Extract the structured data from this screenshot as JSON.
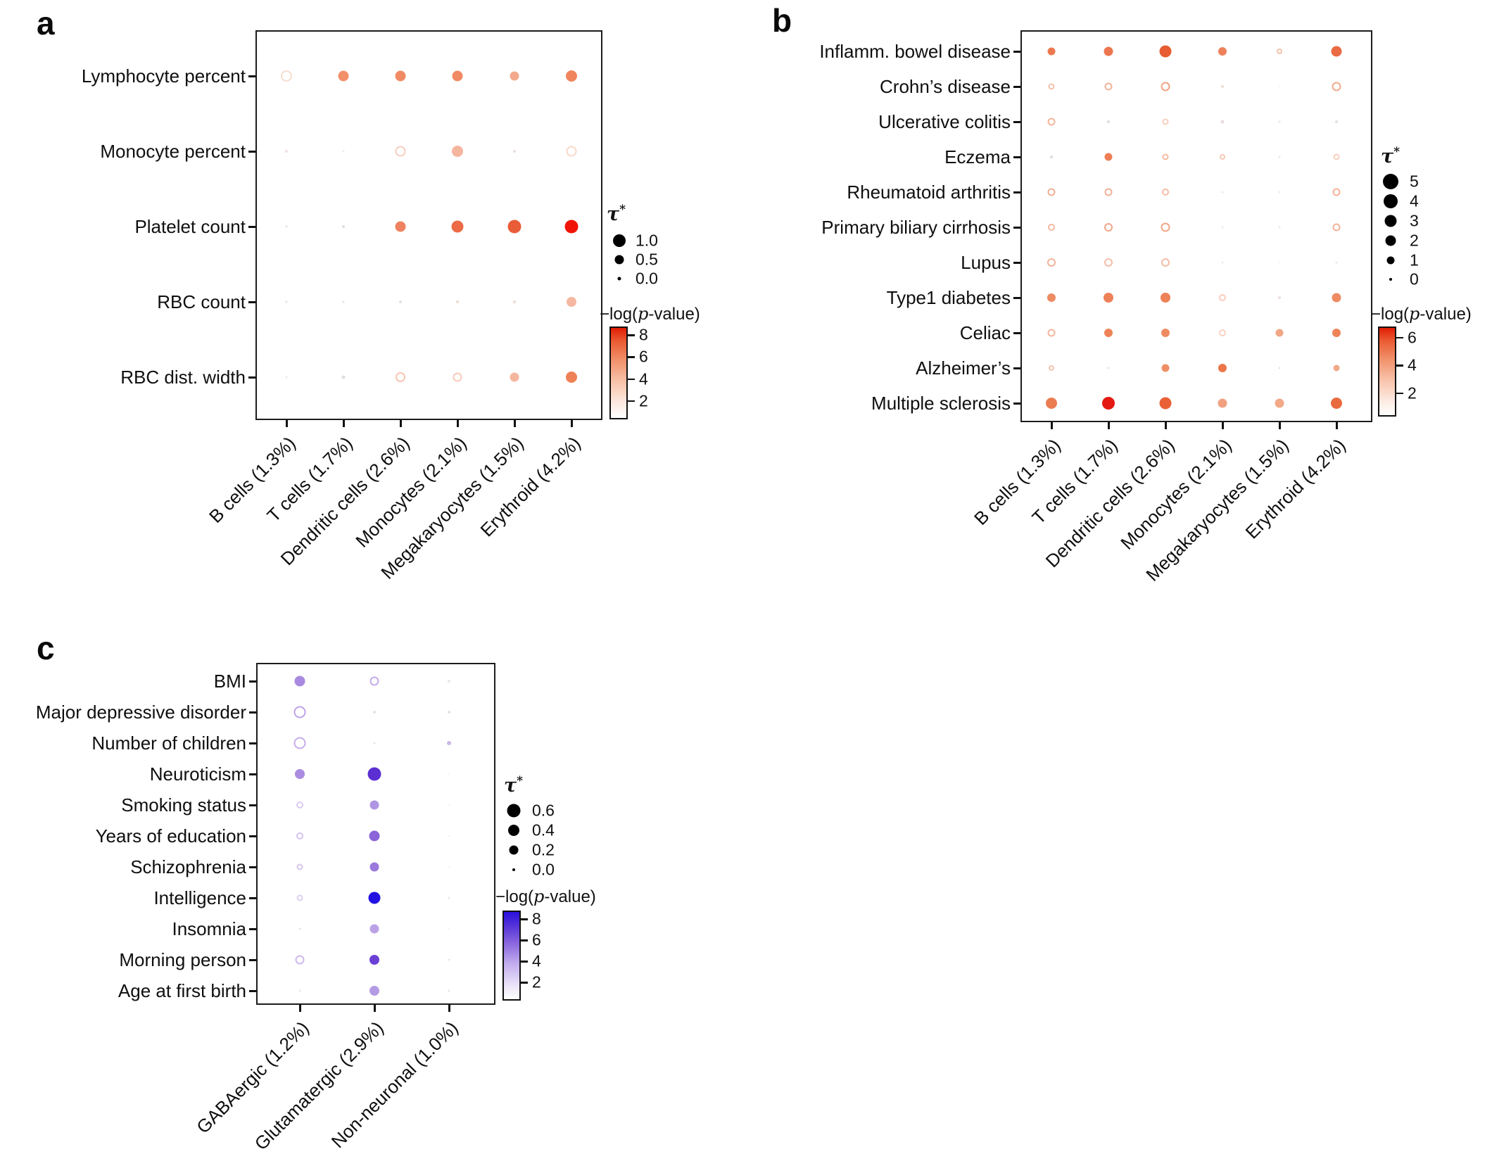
{
  "figure": {
    "background": "#ffffff"
  },
  "chart_data": [
    {
      "type": "scatter",
      "panel_label": "a",
      "y_categories": [
        "Lymphocyte percent",
        "Monocyte percent",
        "Platelet count",
        "RBC count",
        "RBC dist. width"
      ],
      "x_categories": [
        "B cells (1.3%)",
        "T cells (1.7%)",
        "Dendritic cells (2.6%)",
        "Monocytes (2.1%)",
        "Megakaryocytes (1.5%)",
        "Erythroid (4.2%)"
      ],
      "dot_format": "[diameter_px, color_hex, open_ring]",
      "dots": [
        [
          [
            16,
            "#f6ddd0",
            1
          ],
          [
            15,
            "#f2906a",
            0
          ],
          [
            15,
            "#f08a64",
            0
          ],
          [
            15,
            "#f08a64",
            0
          ],
          [
            13,
            "#f4a98c",
            0
          ],
          [
            16,
            "#f0845c",
            0
          ]
        ],
        [
          [
            4,
            "#eee2de",
            0
          ],
          [
            3,
            "#f2eae6",
            0
          ],
          [
            15,
            "#f7cdbd",
            1
          ],
          [
            16,
            "#f5b59e",
            0
          ],
          [
            4,
            "#eadfdb",
            0
          ],
          [
            15,
            "#f8d8c9",
            1
          ]
        ],
        [
          [
            3,
            "#e3dfdd",
            0
          ],
          [
            4,
            "#dddddf",
            0
          ],
          [
            15,
            "#ef8260",
            0
          ],
          [
            17,
            "#ec6a44",
            0
          ],
          [
            19,
            "#e95c38",
            0
          ],
          [
            19,
            "#f01408",
            0
          ]
        ],
        [
          [
            3,
            "#e8e2e0",
            0
          ],
          [
            3,
            "#e8e2e0",
            0
          ],
          [
            4,
            "#e4e0e0",
            0
          ],
          [
            4,
            "#eedcd4",
            0
          ],
          [
            4,
            "#eedcd4",
            0
          ],
          [
            14,
            "#f5b79f",
            0
          ]
        ],
        [
          [
            3,
            "#efe7e3",
            0
          ],
          [
            5,
            "#e2dcde",
            0
          ],
          [
            14,
            "#f6c5b1",
            1
          ],
          [
            13,
            "#f7cab8",
            1
          ],
          [
            13,
            "#f5b69e",
            0
          ],
          [
            16,
            "#ef8156",
            0
          ]
        ]
      ],
      "legend": {
        "size_title": "τ*",
        "sizes": [
          {
            "label": "1.0",
            "d": 18
          },
          {
            "label": "0.5",
            "d": 13
          },
          {
            "label": "0.0",
            "d": 5
          }
        ],
        "pvalue_title": "−log(p-value)",
        "colorbar_ticks": [
          "8",
          "6",
          "4",
          "2"
        ],
        "colorbar_high": "#e01d05",
        "colorbar_low": "#ffffff"
      }
    },
    {
      "type": "scatter",
      "panel_label": "b",
      "y_categories": [
        "Inflamm. bowel disease",
        "Crohn’s disease",
        "Ulcerative colitis",
        "Eczema",
        "Rheumatoid arthritis",
        "Primary biliary cirrhosis",
        "Lupus",
        "Type1 diabetes",
        "Celiac",
        "Alzheimer’s",
        "Multiple sclerosis"
      ],
      "x_categories": [
        "B cells (1.3%)",
        "T cells (1.7%)",
        "Dendritic cells (2.6%)",
        "Monocytes (2.1%)",
        "Megakaryocytes (1.5%)",
        "Erythroid (4.2%)"
      ],
      "dot_format": "[diameter_px, color_hex, open_ring]",
      "dots": [
        [
          [
            11,
            "#ec7850",
            0
          ],
          [
            13,
            "#ec764e",
            0
          ],
          [
            17,
            "#e75c32",
            0
          ],
          [
            12,
            "#ee815a",
            0
          ],
          [
            8,
            "#f6c2ac",
            1
          ],
          [
            15,
            "#ea6a42",
            0
          ]
        ],
        [
          [
            9,
            "#f5c2ac",
            1
          ],
          [
            11,
            "#f3b298",
            1
          ],
          [
            13,
            "#f1a384",
            1
          ],
          [
            4,
            "#efddd5",
            0
          ],
          [
            2,
            "#f2eae6",
            0
          ],
          [
            13,
            "#f1a98d",
            1
          ]
        ],
        [
          [
            11,
            "#f3b59b",
            1
          ],
          [
            4,
            "#dedadc",
            0
          ],
          [
            9,
            "#f7cfbe",
            1
          ],
          [
            5,
            "#e7dedb",
            0
          ],
          [
            3,
            "#ebe5e3",
            0
          ],
          [
            4,
            "#e7dedb",
            0
          ]
        ],
        [
          [
            4,
            "#dedadc",
            0
          ],
          [
            11,
            "#ee7e54",
            0
          ],
          [
            9,
            "#f4baa0",
            1
          ],
          [
            8,
            "#f7c8b4",
            1
          ],
          [
            3,
            "#ebe5e3",
            0
          ],
          [
            9,
            "#f8cfbd",
            1
          ]
        ],
        [
          [
            11,
            "#f3b095",
            1
          ],
          [
            11,
            "#f3b095",
            1
          ],
          [
            10,
            "#f4bda5",
            1
          ],
          [
            3,
            "#f0e9e7",
            0
          ],
          [
            3,
            "#f0e9e7",
            0
          ],
          [
            11,
            "#f3b298",
            1
          ]
        ],
        [
          [
            10,
            "#f4b89f",
            1
          ],
          [
            12,
            "#f2a788",
            1
          ],
          [
            13,
            "#f2a788",
            1
          ],
          [
            3,
            "#f0e9e7",
            0
          ],
          [
            3,
            "#f0e9e7",
            0
          ],
          [
            11,
            "#f3b298",
            1
          ]
        ],
        [
          [
            12,
            "#f3b49a",
            1
          ],
          [
            12,
            "#f4bda7",
            1
          ],
          [
            12,
            "#f4bda7",
            1
          ],
          [
            3,
            "#f0e9e7",
            0
          ],
          [
            2,
            "#f3edeb",
            0
          ],
          [
            3,
            "#f0e9e7",
            0
          ]
        ],
        [
          [
            12,
            "#ee8b62",
            0
          ],
          [
            14,
            "#ed8157",
            0
          ],
          [
            14,
            "#ed8157",
            0
          ],
          [
            10,
            "#f8ccba",
            1
          ],
          [
            4,
            "#ebdfd9",
            0
          ],
          [
            13,
            "#ee8b62",
            0
          ]
        ],
        [
          [
            11,
            "#f3b69c",
            1
          ],
          [
            12,
            "#ee8357",
            0
          ],
          [
            12,
            "#ee8b60",
            0
          ],
          [
            10,
            "#f9d1c1",
            1
          ],
          [
            11,
            "#f2a685",
            0
          ],
          [
            12,
            "#ee8357",
            0
          ]
        ],
        [
          [
            8,
            "#f6c4af",
            1
          ],
          [
            3,
            "#ece3df",
            0
          ],
          [
            11,
            "#ee8f66",
            0
          ],
          [
            12,
            "#ec764a",
            0
          ],
          [
            3,
            "#ece3df",
            0
          ],
          [
            9,
            "#f2a988",
            0
          ]
        ],
        [
          [
            16,
            "#ec7c52",
            0
          ],
          [
            18,
            "#e41a12",
            0
          ],
          [
            17,
            "#ea6036",
            0
          ],
          [
            13,
            "#f2a180",
            0
          ],
          [
            13,
            "#f2a988",
            0
          ],
          [
            16,
            "#ea6a40",
            0
          ]
        ]
      ],
      "legend": {
        "size_title": "τ*",
        "sizes": [
          {
            "label": "5",
            "d": 22
          },
          {
            "label": "4",
            "d": 20
          },
          {
            "label": "3",
            "d": 17
          },
          {
            "label": "2",
            "d": 15
          },
          {
            "label": "1",
            "d": 11
          },
          {
            "label": "0",
            "d": 4
          }
        ],
        "pvalue_title": "−log(p-value)",
        "colorbar_ticks": [
          "6",
          "4",
          "2"
        ],
        "colorbar_high": "#e01d05",
        "colorbar_low": "#ffffff"
      }
    },
    {
      "type": "scatter",
      "panel_label": "c",
      "y_categories": [
        "BMI",
        "Major depressive disorder",
        "Number of children",
        "Neuroticism",
        "Smoking status",
        "Years of education",
        "Schizophrenia",
        "Intelligence",
        "Insomnia",
        "Morning person",
        "Age at first birth"
      ],
      "x_categories": [
        "GABAergic (1.2%)",
        "Glutamatergic (2.9%)",
        "Non-neuronal (1.0%)"
      ],
      "dot_format": "[diameter_px, color_hex, open_ring]",
      "dots": [
        [
          [
            15,
            "#a98ae0",
            0
          ],
          [
            13,
            "#c4ace9",
            1
          ],
          [
            4,
            "#e9e5ef",
            0
          ]
        ],
        [
          [
            17,
            "#bea3e6",
            1
          ],
          [
            4,
            "#e5e1eb",
            0
          ],
          [
            4,
            "#e5e1eb",
            0
          ]
        ],
        [
          [
            17,
            "#c5ade9",
            1
          ],
          [
            3,
            "#e9e5ef",
            0
          ],
          [
            6,
            "#c9b8e9",
            0
          ]
        ],
        [
          [
            14,
            "#ab8ce1",
            0
          ],
          [
            19,
            "#5b2fd2",
            0
          ],
          [
            2,
            "#f0edf5",
            0
          ]
        ],
        [
          [
            10,
            "#daccf1",
            1
          ],
          [
            13,
            "#b095e2",
            0
          ],
          [
            2,
            "#edeaf3",
            0
          ]
        ],
        [
          [
            10,
            "#d3c3ef",
            1
          ],
          [
            15,
            "#8a64d8",
            0
          ],
          [
            2,
            "#edeaf3",
            0
          ]
        ],
        [
          [
            9,
            "#d6c7ef",
            1
          ],
          [
            13,
            "#9a79dc",
            0
          ],
          [
            2,
            "#edeaf3",
            0
          ]
        ],
        [
          [
            9,
            "#ddd0f1",
            1
          ],
          [
            17,
            "#2212e2",
            0
          ],
          [
            3,
            "#e9e5f0",
            0
          ]
        ],
        [
          [
            3,
            "#e9e5f0",
            0
          ],
          [
            13,
            "#bba2e6",
            0
          ],
          [
            2,
            "#edeaf3",
            0
          ]
        ],
        [
          [
            13,
            "#ceb9ec",
            1
          ],
          [
            14,
            "#6b40d4",
            0
          ],
          [
            3,
            "#e9e5f0",
            0
          ]
        ],
        [
          [
            3,
            "#e9e5f0",
            0
          ],
          [
            14,
            "#b49ce4",
            0
          ],
          [
            3,
            "#e9e5f0",
            0
          ]
        ]
      ],
      "legend": {
        "size_title": "τ*",
        "sizes": [
          {
            "label": "0.6",
            "d": 19
          },
          {
            "label": "0.4",
            "d": 16
          },
          {
            "label": "0.2",
            "d": 13
          },
          {
            "label": "0.0",
            "d": 4
          }
        ],
        "pvalue_title": "−log(p-value)",
        "colorbar_ticks": [
          "8",
          "6",
          "4",
          "2"
        ],
        "colorbar_high": "#2a10e0",
        "colorbar_low": "#ffffff"
      }
    }
  ]
}
